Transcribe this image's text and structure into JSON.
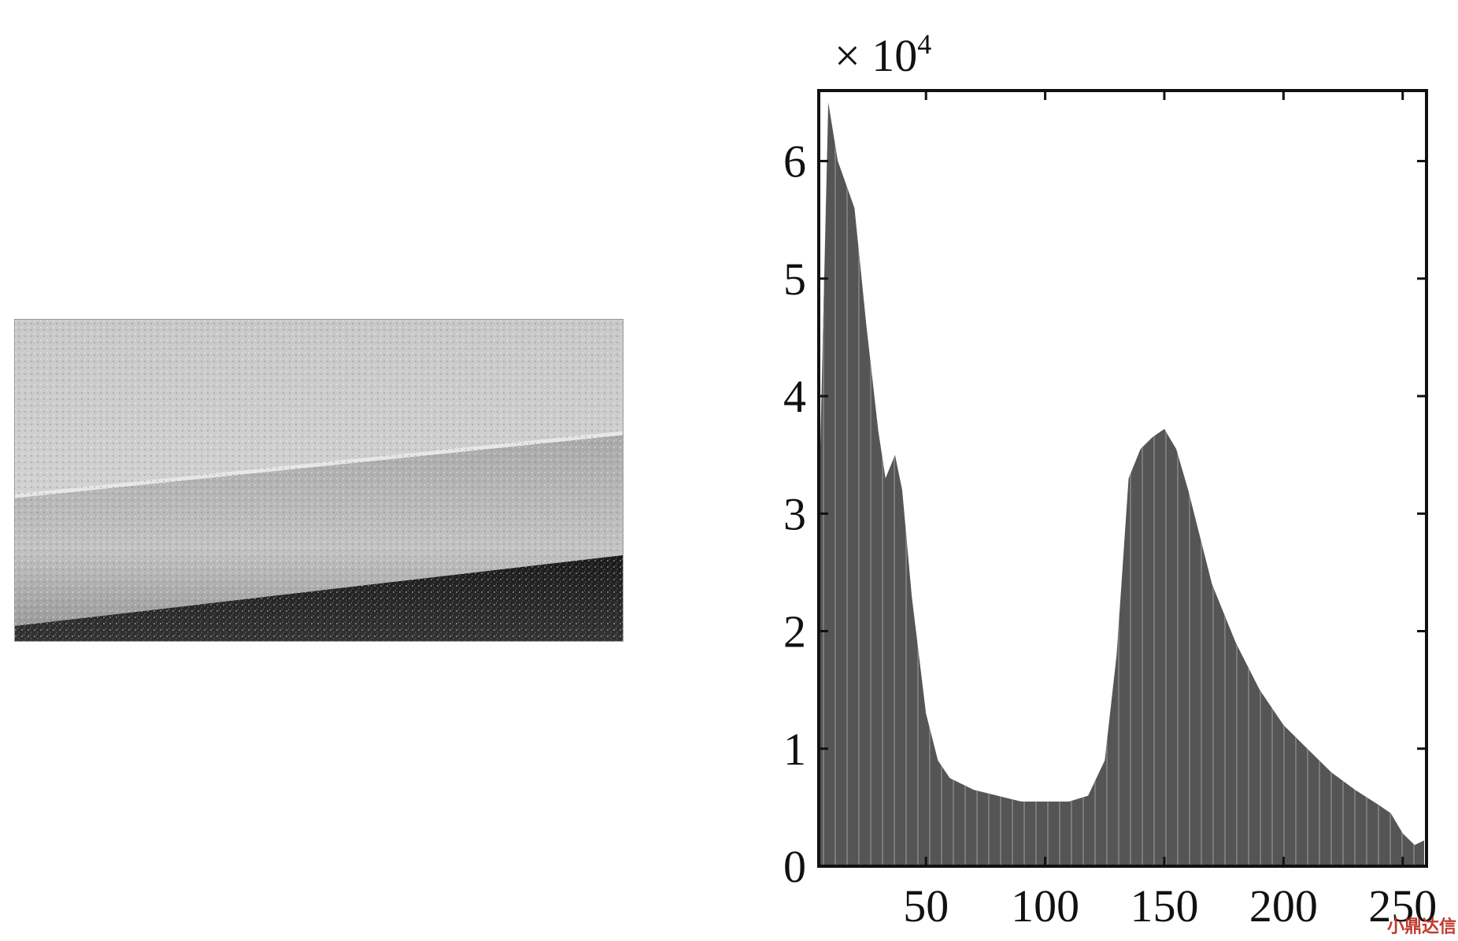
{
  "chart_data": {
    "type": "area",
    "title": "",
    "xlabel": "",
    "ylabel": "",
    "y_scale_label": {
      "base": "× 10",
      "exponent": "4"
    },
    "xlim": [
      5,
      260
    ],
    "ylim": [
      0,
      6.6
    ],
    "x_ticks": [
      50,
      100,
      150,
      200,
      250
    ],
    "y_ticks": [
      0,
      1,
      2,
      3,
      4,
      5,
      6
    ],
    "grid": false,
    "fill_color": "#555555",
    "series": [
      {
        "x": [
          5,
          9,
          13,
          20,
          25,
          30,
          33,
          37,
          40,
          44,
          50,
          55,
          60,
          70,
          80,
          90,
          100,
          110,
          118,
          125,
          130,
          135,
          140,
          145,
          150,
          155,
          160,
          170,
          180,
          190,
          200,
          210,
          220,
          230,
          240,
          245,
          250,
          255,
          259
        ],
        "y": [
          3.0,
          6.5,
          6.0,
          5.6,
          4.6,
          3.7,
          3.3,
          3.5,
          3.2,
          2.3,
          1.3,
          0.9,
          0.75,
          0.65,
          0.6,
          0.55,
          0.55,
          0.55,
          0.6,
          0.9,
          1.8,
          3.3,
          3.55,
          3.65,
          3.72,
          3.55,
          3.2,
          2.4,
          1.9,
          1.5,
          1.2,
          1.0,
          0.8,
          0.65,
          0.52,
          0.45,
          0.28,
          0.18,
          0.22
        ]
      }
    ]
  },
  "photo": {
    "description_icon": "grayscale-road-photo"
  },
  "watermark": {
    "text": "小鼎达信"
  }
}
